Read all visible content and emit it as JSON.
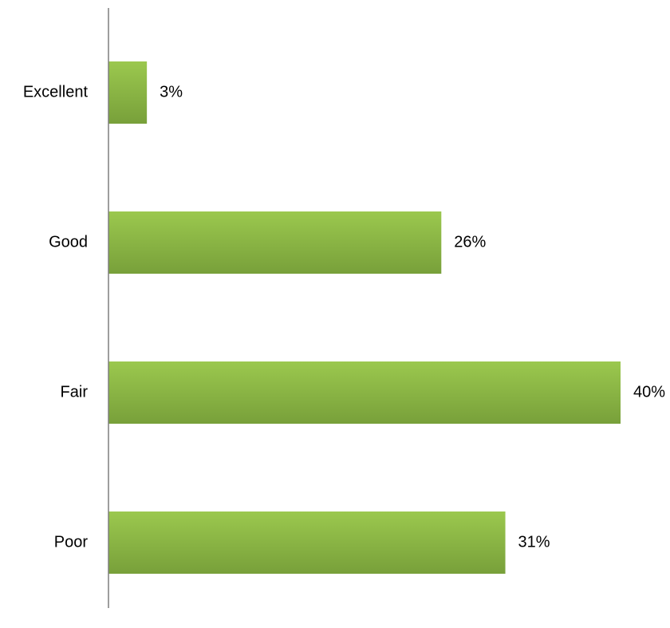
{
  "chart_data": {
    "type": "bar",
    "orientation": "horizontal",
    "title": "",
    "xlabel": "",
    "ylabel": "",
    "categories": [
      "Excellent",
      "Good",
      "Fair",
      "Poor"
    ],
    "values": [
      3,
      26,
      40,
      31
    ],
    "value_labels": [
      "3%",
      "26%",
      "40%",
      "31%"
    ],
    "unit": "%",
    "xlim": [
      0,
      40
    ],
    "grid": false,
    "legend": "none",
    "colors": {
      "bar_light": "#9bc84e",
      "bar_dark": "#78a03a",
      "axis": "#7f7f7f",
      "text": "#000000"
    }
  }
}
